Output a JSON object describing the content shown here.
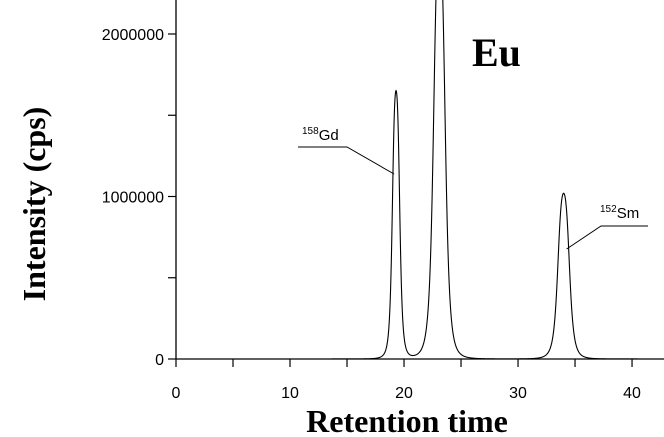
{
  "chart_data": {
    "type": "line",
    "title": "Eu",
    "xlabel": "Retention time",
    "ylabel": "Intensity (cps)",
    "xlim": [
      0,
      44
    ],
    "ylim": [
      0,
      2150000
    ],
    "x_ticks": [
      0,
      10,
      20,
      30,
      40
    ],
    "x_tick_labels": [
      "0",
      "10",
      "20",
      "30",
      "40"
    ],
    "y_ticks": [
      0,
      1000000,
      2000000
    ],
    "y_tick_labels": [
      "0",
      "1000000",
      "2000000"
    ],
    "y_minor_ticks": [
      500000,
      1500000
    ],
    "grid": false,
    "peaks": [
      {
        "label_sup": "158",
        "label": "Gd",
        "center": 19.3,
        "height": 1650000,
        "width": 0.35
      },
      {
        "label_sup": "",
        "label": "",
        "center": 23.1,
        "height": 2600000,
        "width": 0.55
      },
      {
        "label_sup": "152",
        "label": "Sm",
        "center": 34.0,
        "height": 1020000,
        "width": 0.55
      }
    ]
  }
}
